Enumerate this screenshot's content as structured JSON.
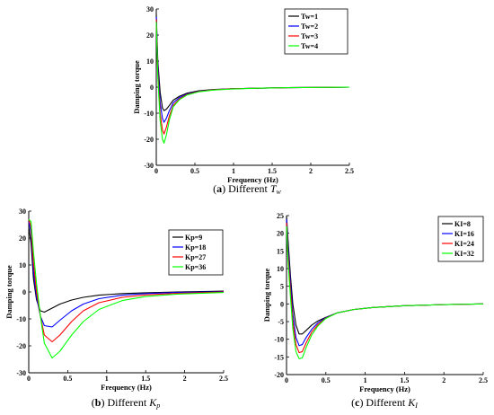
{
  "chart_data": [
    {
      "id": "a",
      "type": "line",
      "caption": {
        "letter": "a",
        "text": " Different ",
        "sym": "T",
        "sub": "w"
      },
      "xlabel": "Frequency (Hz)",
      "ylabel": "Damping torque",
      "xlim": [
        0,
        2.5
      ],
      "ylim": [
        -30,
        30
      ],
      "xticks": [
        "0",
        "0.5",
        "1",
        "1.5",
        "2",
        "2.5"
      ],
      "yticks": [
        "30",
        "20",
        "10",
        "0",
        "-10",
        "-20",
        "-30"
      ],
      "xtick_values": [
        0,
        0.5,
        1,
        1.5,
        2,
        2.5
      ],
      "ytick_values": [
        30,
        20,
        10,
        0,
        -10,
        -20,
        -30
      ],
      "legend_position": "top-right",
      "grid": false,
      "series": [
        {
          "name": "Tw=1",
          "color": "#000000",
          "x": [
            0,
            0.02,
            0.05,
            0.08,
            0.1,
            0.13,
            0.17,
            0.22,
            0.3,
            0.4,
            0.55,
            0.75,
            1.0,
            1.3,
            1.7,
            2.1,
            2.5
          ],
          "y": [
            28,
            10,
            -2,
            -8,
            -9,
            -8.5,
            -7,
            -5,
            -3.5,
            -2.3,
            -1.4,
            -0.9,
            -0.6,
            -0.4,
            -0.2,
            -0.1,
            0
          ]
        },
        {
          "name": "Tw=2",
          "color": "#0000ff",
          "x": [
            0,
            0.02,
            0.05,
            0.08,
            0.1,
            0.13,
            0.17,
            0.22,
            0.3,
            0.4,
            0.55,
            0.75,
            1.0,
            1.3,
            1.7,
            2.1,
            2.5
          ],
          "y": [
            27,
            8,
            -6,
            -12,
            -13.5,
            -12,
            -9,
            -6,
            -4,
            -2.6,
            -1.6,
            -1.0,
            -0.6,
            -0.4,
            -0.2,
            -0.1,
            0
          ]
        },
        {
          "name": "Tw=3",
          "color": "#ff0000",
          "x": [
            0,
            0.02,
            0.05,
            0.08,
            0.1,
            0.13,
            0.17,
            0.22,
            0.3,
            0.4,
            0.55,
            0.75,
            1.0,
            1.3,
            1.7,
            2.1,
            2.5
          ],
          "y": [
            26,
            6,
            -10,
            -16.5,
            -18,
            -15.5,
            -11,
            -7,
            -4.5,
            -2.8,
            -1.7,
            -1.0,
            -0.6,
            -0.4,
            -0.2,
            -0.1,
            0
          ]
        },
        {
          "name": "Tw=4",
          "color": "#00ff00",
          "x": [
            0,
            0.02,
            0.05,
            0.08,
            0.1,
            0.13,
            0.17,
            0.22,
            0.3,
            0.4,
            0.55,
            0.75,
            1.0,
            1.3,
            1.7,
            2.1,
            2.5
          ],
          "y": [
            25,
            4,
            -13,
            -20,
            -21.5,
            -18.5,
            -12.5,
            -7.5,
            -4.8,
            -3,
            -1.8,
            -1.1,
            -0.7,
            -0.4,
            -0.2,
            -0.1,
            0
          ]
        }
      ]
    },
    {
      "id": "b",
      "type": "line",
      "caption": {
        "letter": "b",
        "text": " Different ",
        "sym": "K",
        "sub": "p"
      },
      "xlabel": "Frequency (Hz)",
      "ylabel": "Damping torque",
      "xlim": [
        0,
        2.5
      ],
      "ylim": [
        -30,
        30
      ],
      "xticks": [
        "0",
        "0.5",
        "1",
        "1.5",
        "2",
        "2.5"
      ],
      "yticks": [
        "30",
        "20",
        "10",
        "0",
        "-10",
        "-20",
        "-30"
      ],
      "xtick_values": [
        0,
        0.5,
        1,
        1.5,
        2,
        2.5
      ],
      "ytick_values": [
        30,
        20,
        10,
        0,
        -10,
        -20,
        -30
      ],
      "legend_position": "top-right",
      "grid": false,
      "series": [
        {
          "name": "Kp=9",
          "color": "#000000",
          "x": [
            0,
            0.03,
            0.06,
            0.1,
            0.15,
            0.2,
            0.3,
            0.4,
            0.55,
            0.7,
            0.9,
            1.2,
            1.5,
            1.9,
            2.3,
            2.5
          ],
          "y": [
            24,
            18,
            5,
            -3,
            -7,
            -7.5,
            -6,
            -4.5,
            -3,
            -2,
            -1.2,
            -0.6,
            -0.3,
            0,
            0.2,
            0.3
          ]
        },
        {
          "name": "Kp=18",
          "color": "#0000ff",
          "x": [
            0,
            0.03,
            0.06,
            0.1,
            0.15,
            0.2,
            0.3,
            0.4,
            0.55,
            0.7,
            0.9,
            1.2,
            1.5,
            1.9,
            2.3,
            2.5
          ],
          "y": [
            26,
            22,
            8,
            -2,
            -9,
            -12.5,
            -13,
            -10.5,
            -7,
            -4.5,
            -2.5,
            -1.2,
            -0.6,
            -0.2,
            0,
            0.1
          ]
        },
        {
          "name": "Kp=27",
          "color": "#ff0000",
          "x": [
            0,
            0.03,
            0.06,
            0.1,
            0.15,
            0.2,
            0.3,
            0.4,
            0.55,
            0.7,
            0.9,
            1.2,
            1.5,
            1.9,
            2.3,
            2.5
          ],
          "y": [
            27,
            24,
            11,
            0,
            -9,
            -16,
            -18.5,
            -16,
            -11,
            -7,
            -4,
            -2,
            -1.1,
            -0.5,
            -0.2,
            0
          ]
        },
        {
          "name": "Kp=36",
          "color": "#00ff00",
          "x": [
            0,
            0.03,
            0.06,
            0.1,
            0.15,
            0.2,
            0.3,
            0.4,
            0.55,
            0.7,
            0.9,
            1.2,
            1.5,
            1.9,
            2.3,
            2.5
          ],
          "y": [
            27,
            26,
            15,
            3,
            -9,
            -19,
            -24.5,
            -22,
            -16,
            -11,
            -6.5,
            -3.2,
            -1.7,
            -0.8,
            -0.4,
            -0.2
          ]
        }
      ]
    },
    {
      "id": "c",
      "type": "line",
      "caption": {
        "letter": "c",
        "text": " Different ",
        "sym": "K",
        "sub": "I"
      },
      "xlabel": "Frequency (Hz)",
      "ylabel": "Damping torque",
      "xlim": [
        0,
        2.5
      ],
      "ylim": [
        -20,
        25
      ],
      "xticks": [
        "0",
        "0.5",
        "1",
        "1.5",
        "2",
        "2.5"
      ],
      "yticks": [
        "25",
        "20",
        "15",
        "10",
        "5",
        "0",
        "-5",
        "-10",
        "-15",
        "-20"
      ],
      "xtick_values": [
        0,
        0.5,
        1,
        1.5,
        2,
        2.5
      ],
      "ytick_values": [
        25,
        20,
        15,
        10,
        5,
        0,
        -5,
        -10,
        -15,
        -20
      ],
      "legend_position": "top-right",
      "grid": false,
      "series": [
        {
          "name": "KI=8",
          "color": "#000000",
          "x": [
            0,
            0.02,
            0.05,
            0.08,
            0.12,
            0.16,
            0.2,
            0.25,
            0.32,
            0.4,
            0.5,
            0.65,
            0.85,
            1.1,
            1.5,
            2.0,
            2.5
          ],
          "y": [
            25,
            18,
            8,
            0,
            -6,
            -8.5,
            -8.5,
            -7.5,
            -6,
            -4.8,
            -3.8,
            -2.5,
            -1.6,
            -1.0,
            -0.5,
            -0.2,
            0
          ]
        },
        {
          "name": "KI=16",
          "color": "#0000ff",
          "x": [
            0,
            0.02,
            0.05,
            0.08,
            0.12,
            0.16,
            0.2,
            0.25,
            0.32,
            0.4,
            0.5,
            0.65,
            0.85,
            1.1,
            1.5,
            2.0,
            2.5
          ],
          "y": [
            24,
            16,
            6,
            -3,
            -9.5,
            -11.8,
            -11.5,
            -9.5,
            -7.2,
            -5.3,
            -3.9,
            -2.5,
            -1.6,
            -1.0,
            -0.5,
            -0.2,
            0
          ]
        },
        {
          "name": "KI=24",
          "color": "#ff0000",
          "x": [
            0,
            0.02,
            0.05,
            0.08,
            0.12,
            0.16,
            0.2,
            0.25,
            0.32,
            0.4,
            0.5,
            0.65,
            0.85,
            1.1,
            1.5,
            2.0,
            2.5
          ],
          "y": [
            23,
            14,
            4,
            -5,
            -11.5,
            -13.8,
            -13.5,
            -11,
            -8,
            -5.8,
            -4,
            -2.5,
            -1.6,
            -1.0,
            -0.5,
            -0.2,
            0
          ]
        },
        {
          "name": "KI=32",
          "color": "#00ff00",
          "x": [
            0,
            0.02,
            0.05,
            0.08,
            0.12,
            0.16,
            0.2,
            0.25,
            0.32,
            0.4,
            0.5,
            0.65,
            0.85,
            1.1,
            1.5,
            2.0,
            2.5
          ],
          "y": [
            22,
            12,
            2,
            -7,
            -13.5,
            -15.5,
            -15.3,
            -12.3,
            -8.8,
            -6.2,
            -4.1,
            -2.5,
            -1.6,
            -1.0,
            -0.5,
            -0.2,
            0
          ]
        }
      ]
    }
  ]
}
